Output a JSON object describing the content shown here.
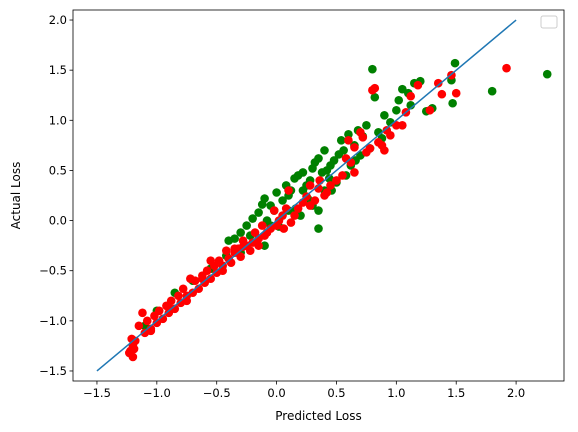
{
  "chart_data": {
    "type": "scatter",
    "title": "",
    "xlabel": "Predicted Loss",
    "ylabel": "Actual Loss",
    "xlim": [
      -1.7,
      2.4
    ],
    "ylim": [
      -1.6,
      2.1
    ],
    "xticks": [
      -1.5,
      -1.0,
      -0.5,
      0.0,
      0.5,
      1.0,
      1.5,
      2.0
    ],
    "xtick_labels": [
      "−1.5",
      "−1.0",
      "−0.5",
      "0.0",
      "0.5",
      "1.0",
      "1.5",
      "2.0"
    ],
    "yticks": [
      -1.5,
      -1.0,
      -0.5,
      0.0,
      0.5,
      1.0,
      1.5,
      2.0
    ],
    "ytick_labels": [
      "−1.5",
      "−1.0",
      "−0.5",
      "0.0",
      "0.5",
      "1.0",
      "1.5",
      "2.0"
    ],
    "grid": false,
    "legend": {
      "placement": "top-right",
      "entries": []
    },
    "reference_line": {
      "x": [
        -1.5,
        2.0
      ],
      "y": [
        -1.5,
        2.0
      ],
      "color": "#1f77b4"
    },
    "series": [
      {
        "color": "#008000",
        "points": [
          [
            2.26,
            1.46
          ],
          [
            1.8,
            1.29
          ],
          [
            1.49,
            1.57
          ],
          [
            1.47,
            1.17
          ],
          [
            1.46,
            1.4
          ],
          [
            1.3,
            1.12
          ],
          [
            1.25,
            1.09
          ],
          [
            1.2,
            1.39
          ],
          [
            1.15,
            1.37
          ],
          [
            1.1,
            1.27
          ],
          [
            1.05,
            1.31
          ],
          [
            1.02,
            1.2
          ],
          [
            1.0,
            1.1
          ],
          [
            0.9,
            1.05
          ],
          [
            0.85,
            0.88
          ],
          [
            0.8,
            1.51
          ],
          [
            0.82,
            1.23
          ],
          [
            0.75,
            0.95
          ],
          [
            0.72,
            0.84
          ],
          [
            0.68,
            0.9
          ],
          [
            0.65,
            0.75
          ],
          [
            0.6,
            0.86
          ],
          [
            0.56,
            0.7
          ],
          [
            0.52,
            0.66
          ],
          [
            0.48,
            0.6
          ],
          [
            0.45,
            0.55
          ],
          [
            0.42,
            0.5
          ],
          [
            0.38,
            0.48
          ],
          [
            0.35,
            0.62
          ],
          [
            0.3,
            0.52
          ],
          [
            0.28,
            0.4
          ],
          [
            0.25,
            0.35
          ],
          [
            0.22,
            0.3
          ],
          [
            0.32,
            0.58
          ],
          [
            0.18,
            0.45
          ],
          [
            0.15,
            0.42
          ],
          [
            0.12,
            0.3
          ],
          [
            0.1,
            0.25
          ],
          [
            0.05,
            0.2
          ],
          [
            0.0,
            0.28
          ],
          [
            -0.05,
            0.15
          ],
          [
            -0.1,
            0.22
          ],
          [
            -0.12,
            0.16
          ],
          [
            -0.15,
            0.08
          ],
          [
            -0.2,
            0.02
          ],
          [
            -0.25,
            -0.05
          ],
          [
            -0.3,
            -0.12
          ],
          [
            -0.35,
            -0.18
          ],
          [
            -0.4,
            -0.2
          ],
          [
            -0.3,
            -0.32
          ],
          [
            -0.1,
            -0.25
          ],
          [
            -0.05,
            -0.05
          ],
          [
            0.1,
            0.1
          ],
          [
            0.2,
            0.05
          ],
          [
            0.35,
            0.1
          ],
          [
            0.3,
            0.15
          ],
          [
            0.4,
            0.3
          ],
          [
            0.5,
            0.38
          ],
          [
            0.58,
            0.45
          ],
          [
            0.62,
            0.55
          ],
          [
            0.7,
            0.65
          ],
          [
            0.78,
            0.72
          ],
          [
            0.35,
            -0.08
          ],
          [
            0.22,
            0.48
          ],
          [
            0.08,
            0.35
          ],
          [
            -0.02,
            0.1
          ],
          [
            0.26,
            0.22
          ],
          [
            0.44,
            0.42
          ],
          [
            -0.22,
            -0.15
          ],
          [
            -0.42,
            -0.35
          ],
          [
            -0.55,
            -0.48
          ],
          [
            -0.7,
            -0.6
          ],
          [
            -0.85,
            -0.72
          ],
          [
            -1.0,
            -0.9
          ],
          [
            -1.1,
            -1.05
          ],
          [
            0.95,
            0.98
          ],
          [
            1.12,
            1.15
          ],
          [
            0.88,
            0.82
          ],
          [
            0.66,
            0.6
          ],
          [
            0.54,
            0.8
          ],
          [
            0.46,
            0.3
          ],
          [
            0.16,
            0.12
          ],
          [
            -0.08,
            0.0
          ],
          [
            0.02,
            -0.06
          ],
          [
            0.4,
            0.7
          ]
        ]
      },
      {
        "color": "#ff0000",
        "points": [
          [
            1.92,
            1.52
          ],
          [
            1.5,
            1.27
          ],
          [
            1.46,
            1.45
          ],
          [
            1.38,
            1.26
          ],
          [
            1.35,
            1.37
          ],
          [
            1.28,
            1.1
          ],
          [
            1.18,
            1.35
          ],
          [
            1.12,
            1.24
          ],
          [
            1.08,
            1.08
          ],
          [
            1.05,
            0.95
          ],
          [
            1.0,
            0.95
          ],
          [
            0.95,
            0.85
          ],
          [
            0.92,
            0.9
          ],
          [
            0.88,
            0.75
          ],
          [
            0.85,
            0.78
          ],
          [
            0.82,
            1.32
          ],
          [
            0.8,
            1.3
          ],
          [
            0.78,
            0.72
          ],
          [
            0.75,
            0.68
          ],
          [
            0.72,
            0.83
          ],
          [
            0.7,
            0.88
          ],
          [
            0.65,
            0.73
          ],
          [
            0.62,
            0.58
          ],
          [
            0.6,
            0.8
          ],
          [
            0.55,
            0.45
          ],
          [
            0.5,
            0.4
          ],
          [
            0.45,
            0.35
          ],
          [
            0.42,
            0.28
          ],
          [
            0.4,
            0.25
          ],
          [
            0.36,
            0.4
          ],
          [
            0.32,
            0.2
          ],
          [
            0.28,
            0.15
          ],
          [
            0.25,
            0.24
          ],
          [
            0.22,
            0.18
          ],
          [
            0.18,
            0.12
          ],
          [
            0.15,
            0.05
          ],
          [
            0.12,
            -0.02
          ],
          [
            0.1,
            0.3
          ],
          [
            0.08,
            0.12
          ],
          [
            0.05,
            0.05
          ],
          [
            0.02,
            0.0
          ],
          [
            0.0,
            -0.05
          ],
          [
            -0.02,
            0.1
          ],
          [
            -0.05,
            -0.08
          ],
          [
            -0.08,
            -0.12
          ],
          [
            -0.1,
            -0.15
          ],
          [
            -0.12,
            -0.05
          ],
          [
            -0.15,
            -0.18
          ],
          [
            -0.18,
            -0.12
          ],
          [
            -0.2,
            -0.22
          ],
          [
            -0.22,
            -0.3
          ],
          [
            -0.25,
            -0.25
          ],
          [
            -0.28,
            -0.2
          ],
          [
            -0.3,
            -0.36
          ],
          [
            -0.32,
            -0.28
          ],
          [
            -0.35,
            -0.32
          ],
          [
            -0.38,
            -0.42
          ],
          [
            -0.4,
            -0.38
          ],
          [
            -0.42,
            -0.3
          ],
          [
            -0.45,
            -0.45
          ],
          [
            -0.48,
            -0.4
          ],
          [
            -0.5,
            -0.52
          ],
          [
            -0.52,
            -0.45
          ],
          [
            -0.55,
            -0.58
          ],
          [
            -0.58,
            -0.5
          ],
          [
            -0.6,
            -0.62
          ],
          [
            -0.62,
            -0.55
          ],
          [
            -0.65,
            -0.68
          ],
          [
            -0.68,
            -0.6
          ],
          [
            -0.7,
            -0.72
          ],
          [
            -0.72,
            -0.58
          ],
          [
            -0.75,
            -0.75
          ],
          [
            -0.78,
            -0.68
          ],
          [
            -0.8,
            -0.82
          ],
          [
            -0.82,
            -0.75
          ],
          [
            -0.85,
            -0.88
          ],
          [
            -0.88,
            -0.8
          ],
          [
            -0.9,
            -0.92
          ],
          [
            -0.92,
            -0.85
          ],
          [
            -0.95,
            -0.98
          ],
          [
            -0.98,
            -0.9
          ],
          [
            -1.0,
            -1.02
          ],
          [
            -1.02,
            -0.95
          ],
          [
            -1.05,
            -1.08
          ],
          [
            -1.08,
            -1.0
          ],
          [
            -1.1,
            -1.12
          ],
          [
            -1.12,
            -0.92
          ],
          [
            -1.15,
            -1.05
          ],
          [
            -1.18,
            -1.2
          ],
          [
            -1.2,
            -1.25
          ],
          [
            -1.22,
            -1.3
          ],
          [
            -1.2,
            -1.36
          ],
          [
            -1.23,
            -1.32
          ],
          [
            -1.21,
            -1.18
          ],
          [
            -1.19,
            -1.28
          ],
          [
            -0.35,
            -0.28
          ],
          [
            -0.28,
            -0.26
          ],
          [
            -0.62,
            -0.58
          ],
          [
            -0.9,
            -0.86
          ],
          [
            0.06,
            -0.08
          ],
          [
            0.65,
            0.48
          ],
          [
            0.9,
            0.7
          ],
          [
            0.35,
            0.32
          ],
          [
            -0.45,
            -0.5
          ],
          [
            -0.75,
            -0.8
          ],
          [
            -1.05,
            -1.1
          ],
          [
            0.28,
            0.35
          ],
          [
            0.58,
            0.62
          ],
          [
            -0.15,
            -0.25
          ],
          [
            -0.55,
            -0.4
          ]
        ]
      }
    ]
  }
}
